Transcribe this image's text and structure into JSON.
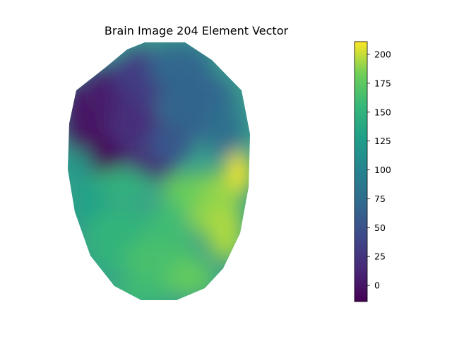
{
  "chart_data": {
    "type": "heatmap",
    "title": "Brain Image 204 Element Vector",
    "colormap": "viridis",
    "value_range": [
      -14,
      211
    ],
    "colorbar": {
      "ticks": [
        0,
        25,
        50,
        75,
        100,
        125,
        150,
        175,
        200
      ],
      "tick_labels": [
        "0",
        "25",
        "50",
        "75",
        "100",
        "125",
        "150",
        "175",
        "200"
      ]
    },
    "grid": false,
    "axes_visible": false,
    "field_description": {
      "regions": [
        {
          "name": "upper-left dark region",
          "value": -10
        },
        {
          "name": "upper-center",
          "value": 25
        },
        {
          "name": "upper-right",
          "value": 75
        },
        {
          "name": "middle band",
          "value": 135
        },
        {
          "name": "lower-left",
          "value": 150
        },
        {
          "name": "right-center peak",
          "value": 205
        },
        {
          "name": "bottom",
          "value": 165
        }
      ]
    }
  }
}
